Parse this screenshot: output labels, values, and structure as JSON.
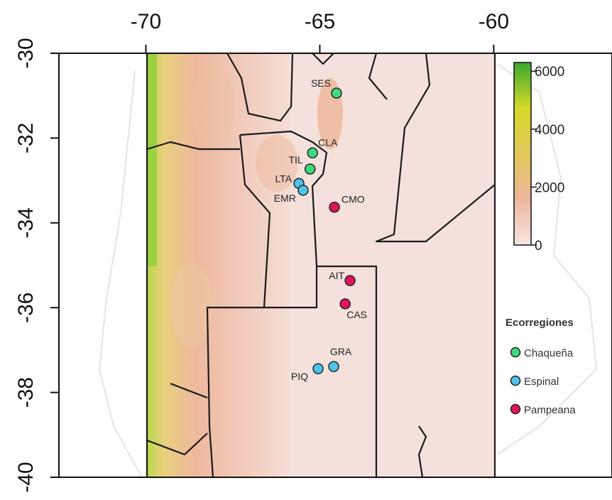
{
  "chart_data": {
    "type": "scatter",
    "xlim": [
      -72.5,
      -56.6
    ],
    "ylim": [
      -40,
      -30
    ],
    "xticks": [
      -70,
      -65,
      -60
    ],
    "yticks": [
      -30,
      -32,
      -34,
      -36,
      -38,
      -40
    ],
    "legend_title": "Ecorregiones",
    "series": [
      {
        "name": "Chaqueña",
        "color": "#3fd97a",
        "labels": [
          "SES",
          "CLA",
          "TIL"
        ],
        "x": [
          -64.52,
          -65.21,
          -65.28
        ],
        "values": [
          -30.94,
          -32.35,
          -32.73
        ]
      },
      {
        "name": "Espinal",
        "color": "#4fc3ea",
        "labels": [
          "LTA",
          "EMR",
          "GRA",
          "PIQ"
        ],
        "x": [
          -65.6,
          -65.48,
          -64.6,
          -65.05
        ],
        "values": [
          -33.07,
          -33.23,
          -37.39,
          -37.44
        ]
      },
      {
        "name": "Pampeana",
        "color": "#e0145a",
        "labels": [
          "CMO",
          "AIT",
          "CAS"
        ],
        "x": [
          -64.58,
          -64.13,
          -64.27
        ],
        "values": [
          -33.63,
          -35.36,
          -35.91
        ]
      }
    ],
    "colorbar": {
      "lim": [
        0,
        6300
      ],
      "ticks": [
        0,
        2000,
        4000,
        6000
      ],
      "colors": [
        "#f6e6e2",
        "#eeb79c",
        "#e2c75a",
        "#d6d92a",
        "#3ba82e"
      ]
    }
  }
}
